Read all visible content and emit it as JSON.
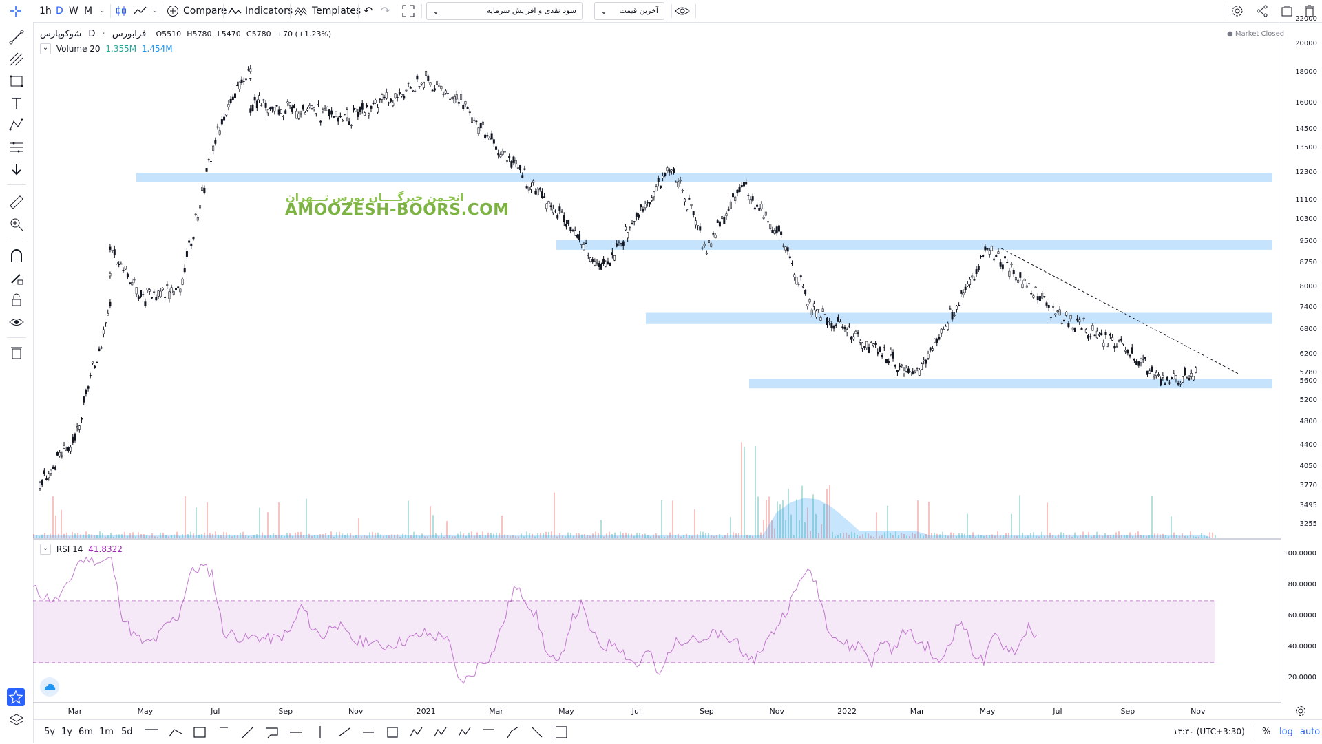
{
  "toolbar": {
    "intervals": [
      "1h",
      "D",
      "W",
      "M"
    ],
    "active_interval": "D",
    "compare_label": "Compare",
    "indicators_label": "Indicators",
    "templates_label": "Templates",
    "dropdown1": "سود نقدی و افزایش سرمایه",
    "dropdown2": "آخرین قیمت"
  },
  "symbol": {
    "name": "شوکوپارس",
    "interval": "D",
    "exchange": "فرابورس",
    "o": "O5510",
    "h": "H5780",
    "l": "L5470",
    "c": "C5780",
    "change": "+70 (+1.23%)",
    "market_status": "Market Closed"
  },
  "volume_legend": {
    "label": "Volume 20",
    "v1": "1.355M",
    "v2": "1.454M"
  },
  "rsi_legend": {
    "label": "RSI 14",
    "value": "41.8322"
  },
  "watermark": {
    "fa": "انجـمن خبرگــــان بورس تـــهران",
    "en": "AMOOZESH-BOORS.COM"
  },
  "price_axis": [
    "22000",
    "20000",
    "18000",
    "16000",
    "14500",
    "13500",
    "12300",
    "11100",
    "10300",
    "9500",
    "8750",
    "8000",
    "7400",
    "6800",
    "6200",
    "5780",
    "5600",
    "5200",
    "4800",
    "4400",
    "4050",
    "3770",
    "3495",
    "3255"
  ],
  "rsi_axis": [
    "100.0000",
    "80.0000",
    "60.0000",
    "40.0000",
    "20.0000"
  ],
  "time_axis": [
    "Mar",
    "May",
    "Jul",
    "Sep",
    "Nov",
    "2021",
    "Mar",
    "May",
    "Jul",
    "Sep",
    "Nov",
    "2022",
    "Mar",
    "May",
    "Jul",
    "Sep",
    "Nov"
  ],
  "bottom": {
    "ranges": [
      "5y",
      "1y",
      "6m",
      "1m",
      "5d"
    ],
    "clock": "۱۳:۳۰ (UTC+3:30)",
    "percent": "%",
    "log": "log",
    "auto": "auto"
  },
  "colors": {
    "up": "#26a69a",
    "down": "#ef5350",
    "rsi": "#9c27b0",
    "zone": "#bbdefb",
    "accent": "#2962ff"
  },
  "chart_data": {
    "type": "candlestick",
    "scale": "log",
    "ylim": [
      3200,
      22500
    ],
    "zones": [
      {
        "from": 11900,
        "to": 12300
      },
      {
        "from": 9200,
        "to": 9550
      },
      {
        "from": 6950,
        "to": 7250
      },
      {
        "from": 5450,
        "to": 5650
      }
    ],
    "trendline": {
      "from": {
        "date": "2022-05",
        "price": 9250
      },
      "to": {
        "date": "2022-11",
        "price": 5750
      }
    },
    "price_path": [
      {
        "date": "2020-02",
        "price": 3800
      },
      {
        "date": "2020-03",
        "price": 4500
      },
      {
        "date": "2020-04",
        "price": 7500
      },
      {
        "date": "2020-04",
        "price": 9100
      },
      {
        "date": "2020-05",
        "price": 7700
      },
      {
        "date": "2020-06",
        "price": 8000
      },
      {
        "date": "2020-07",
        "price": 14000
      },
      {
        "date": "2020-08",
        "price": 18500
      },
      {
        "date": "2020-08",
        "price": 16000
      },
      {
        "date": "2020-11",
        "price": 15200
      },
      {
        "date": "2021-01",
        "price": 17500
      },
      {
        "date": "2021-02",
        "price": 16000
      },
      {
        "date": "2021-03",
        "price": 13600
      },
      {
        "date": "2021-05",
        "price": 10300
      },
      {
        "date": "2021-06",
        "price": 8500
      },
      {
        "date": "2021-08",
        "price": 12600
      },
      {
        "date": "2021-09",
        "price": 9200
      },
      {
        "date": "2021-10",
        "price": 11700
      },
      {
        "date": "2021-11",
        "price": 9900
      },
      {
        "date": "2021-12",
        "price": 7400
      },
      {
        "date": "2022-03",
        "price": 5700
      },
      {
        "date": "2022-05",
        "price": 9250
      },
      {
        "date": "2022-07",
        "price": 7200
      },
      {
        "date": "2022-09",
        "price": 6300
      },
      {
        "date": "2022-10",
        "price": 5600
      },
      {
        "date": "2022-11",
        "price": 5780
      }
    ],
    "rsi": {
      "upper": 70,
      "lower": 30,
      "values": [
        78,
        73,
        70,
        78,
        95,
        98,
        95,
        97,
        60,
        48,
        42,
        45,
        55,
        60,
        87,
        92,
        88,
        50,
        48,
        45,
        47,
        45,
        46,
        50,
        67,
        52,
        47,
        57,
        48,
        43,
        45,
        40,
        42,
        44,
        46,
        49,
        47,
        48,
        18,
        20,
        30,
        35,
        55,
        78,
        72,
        60,
        35,
        28,
        55,
        67,
        48,
        40,
        44,
        35,
        28,
        38,
        20,
        40,
        45,
        48,
        42,
        50,
        44,
        45,
        28,
        38,
        48,
        60,
        73,
        90,
        82,
        55,
        45,
        40,
        42,
        30,
        45,
        38,
        52,
        44,
        40,
        28,
        45,
        58,
        38,
        30,
        48,
        40,
        38,
        55,
        42
      ]
    },
    "volume": {
      "ma_label": "Volume 20"
    }
  }
}
